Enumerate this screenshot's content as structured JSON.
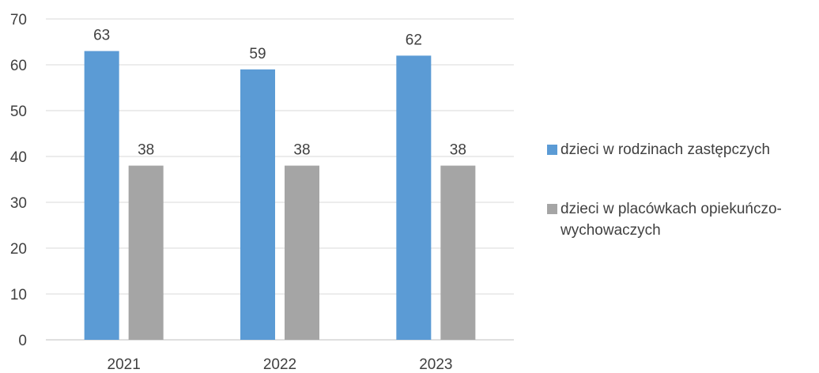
{
  "chart_data": {
    "type": "bar",
    "categories": [
      "2021",
      "2022",
      "2023"
    ],
    "series": [
      {
        "name": "dzieci w rodzinach zastępczych",
        "color": "#5B9BD5",
        "values": [
          63,
          59,
          62
        ]
      },
      {
        "name": "dzieci w placówkach opiekuńczo-wychowaczych",
        "color": "#A5A5A5",
        "values": [
          38,
          38,
          38
        ]
      }
    ],
    "ylim": [
      0,
      70
    ],
    "yticks": [
      0,
      10,
      20,
      30,
      40,
      50,
      60,
      70
    ],
    "grid": true,
    "legend": "right",
    "data_labels": true,
    "title": "",
    "xlabel": "",
    "ylabel": ""
  }
}
